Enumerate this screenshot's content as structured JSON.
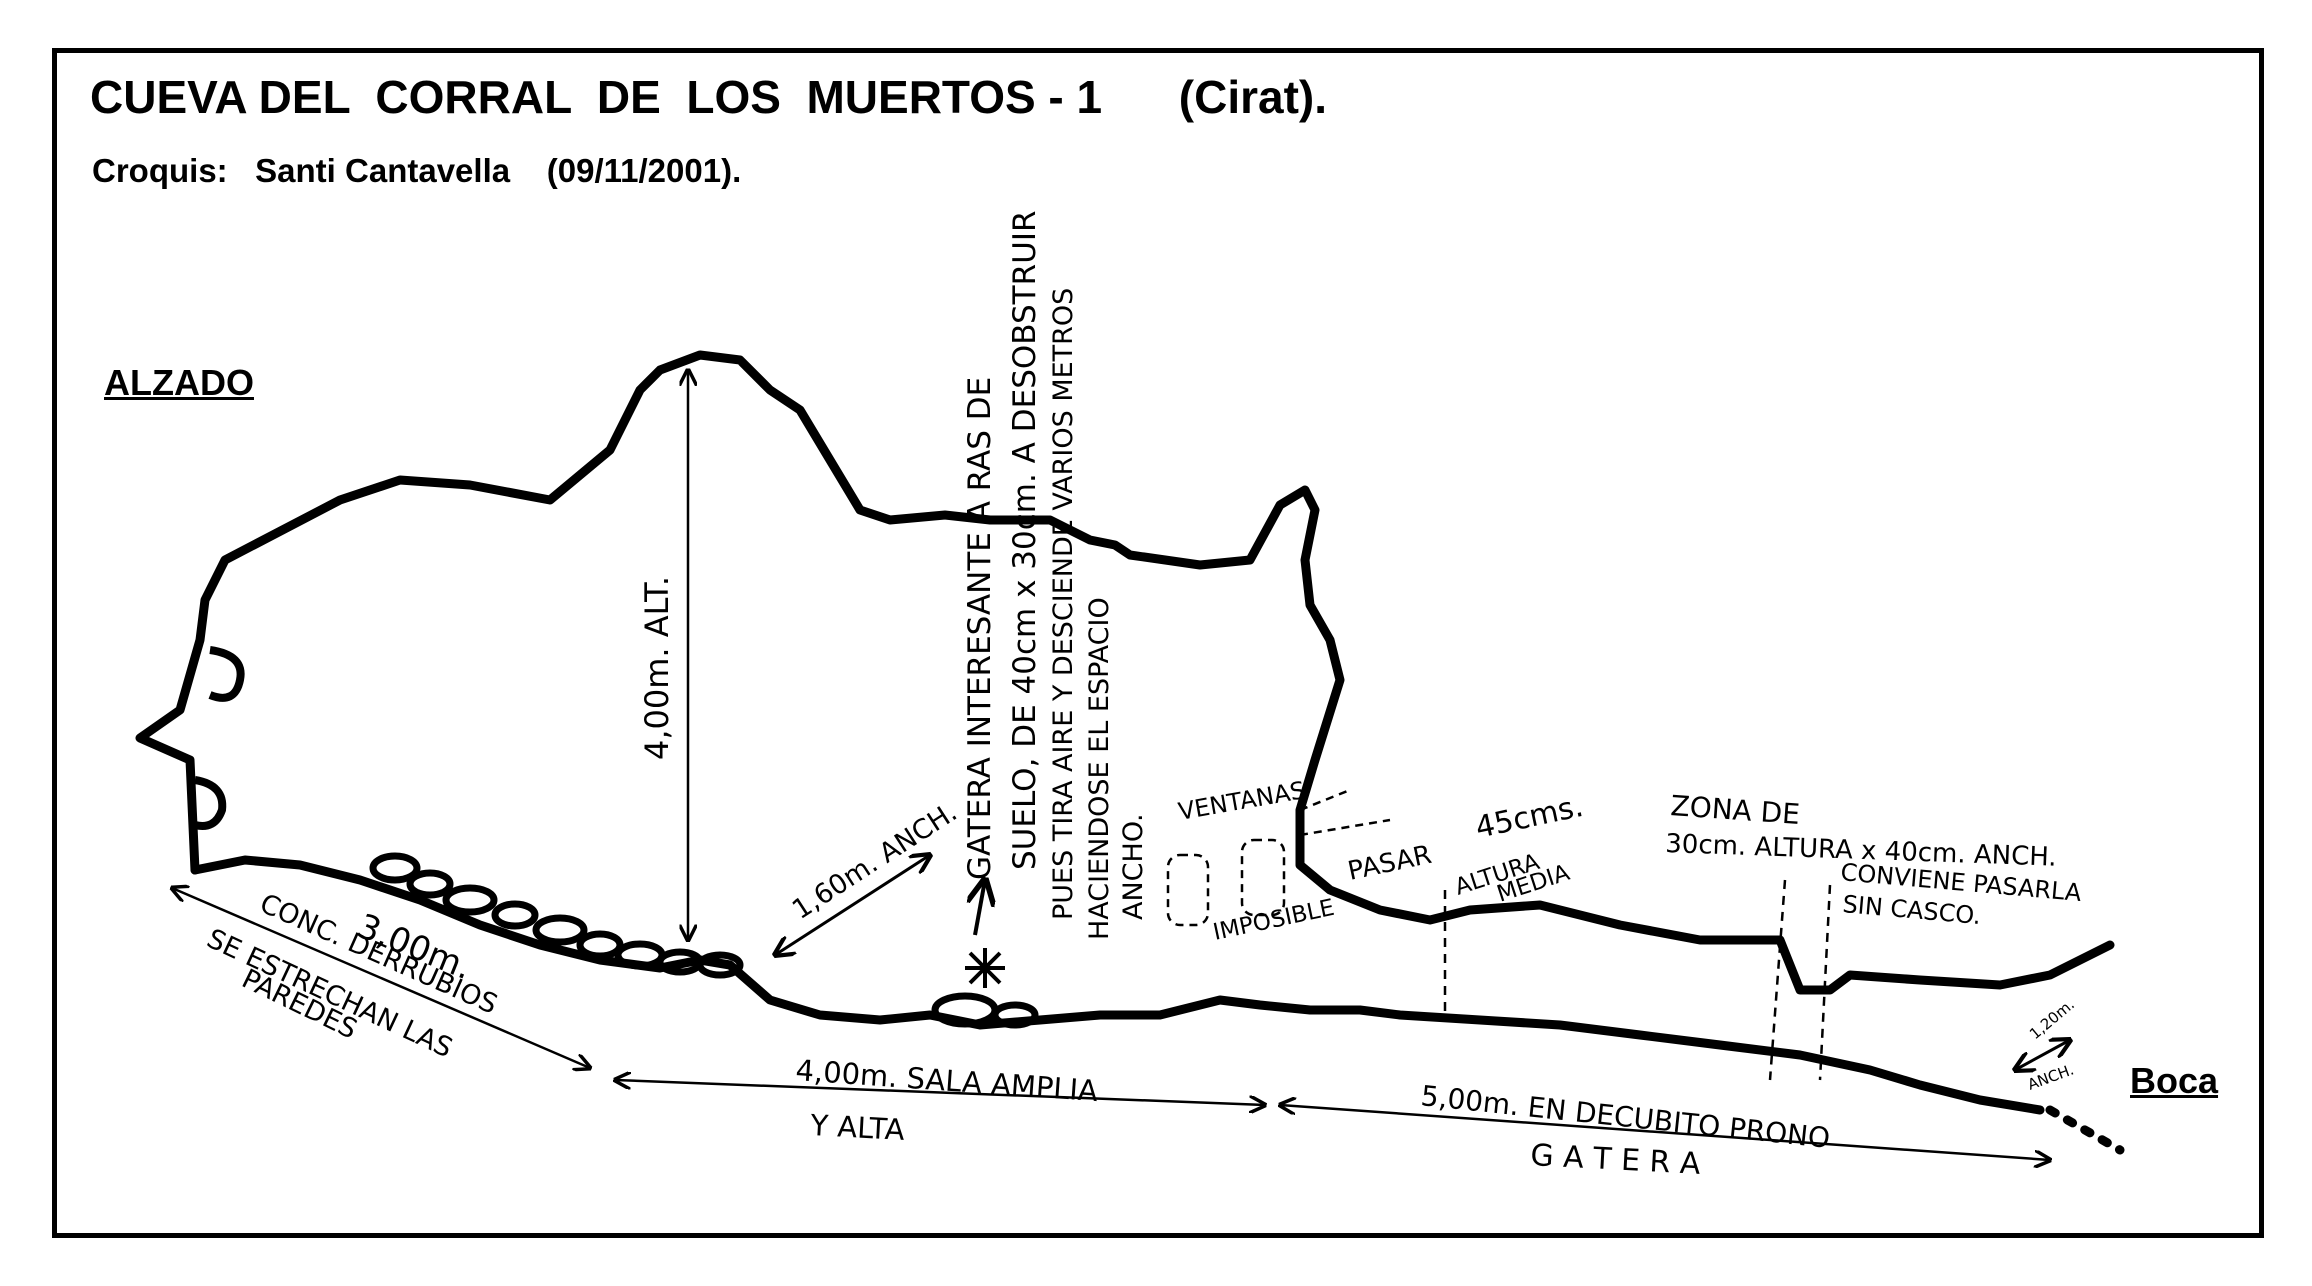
{
  "header": {
    "title": "CUEVA DEL  CORRAL  DE  LOS  MUERTOS - 1      (Cirat).",
    "subtitle": "Croquis:   Santi Cantavella    (09/11/2001)."
  },
  "labels": {
    "section": "ALZADO",
    "entrance": "Boca"
  },
  "annotations": {
    "height_main": "4,00m. ALT.",
    "width_main": "1,60m. ANCH.",
    "gatera_1": "GATERA INTERESANTE A RAS DE",
    "gatera_2": "SUELO, DE 40cm x 30cm. A DESOBSTRUIR",
    "gatera_3": "PUES TIRA AIRE Y DESCIENDE VARIOS METROS",
    "gatera_4": "HACIENDOSE EL ESPACIO",
    "gatera_5": "ANCHO.",
    "ventanas": "VENTANAS",
    "imposible": "IMPOSIBLE",
    "pasar": "PASAR",
    "altura_45": "45cms.",
    "altura_media_1": "ALTURA",
    "altura_media_2": "MEDIA",
    "zona_1": "ZONA DE",
    "zona_2": "30cm. ALTURA x 40cm. ANCH.",
    "conviene_1": "CONVIENE PASARLA",
    "conviene_2": "SIN CASCO.",
    "width_entrance_1": "1,20m.",
    "width_entrance_2": "ANCH.",
    "seg1_len": "3,00m.",
    "seg1_desc_1": "CONC. DERRUBIOS",
    "seg1_desc_2": "SE ESTRECHAN LAS",
    "seg1_desc_3": "PAREDES",
    "seg2_len": "4,00m. SALA AMPLIA",
    "seg2_desc": "Y ALTA",
    "seg3_len": "5,00m. EN DECUBITO PRONO",
    "seg3_desc": "G A T E R A"
  }
}
